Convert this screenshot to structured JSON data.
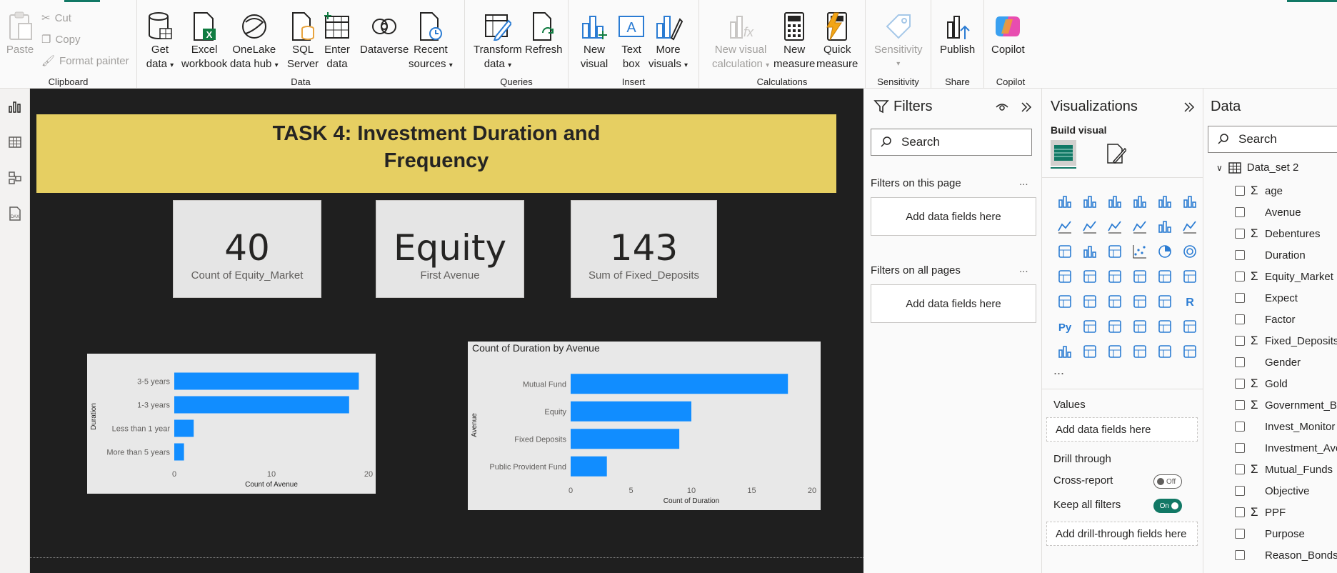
{
  "ribbon": {
    "clipboard": {
      "label": "Clipboard",
      "paste": "Paste",
      "cut": "Cut",
      "copy": "Copy",
      "format_painter": "Format painter"
    },
    "data": {
      "label": "Data",
      "get_data": [
        "Get",
        "data"
      ],
      "excel": [
        "Excel",
        "workbook"
      ],
      "onelake": [
        "OneLake",
        "data hub"
      ],
      "sql": [
        "SQL",
        "Server"
      ],
      "enter": [
        "Enter",
        "data"
      ],
      "dataverse": [
        "Dataverse"
      ],
      "recent": [
        "Recent",
        "sources"
      ]
    },
    "queries": {
      "label": "Queries",
      "transform": [
        "Transform",
        "data"
      ],
      "refresh": [
        "Refresh"
      ]
    },
    "insert": {
      "label": "Insert",
      "new_visual": [
        "New",
        "visual"
      ],
      "text_box": [
        "Text",
        "box"
      ],
      "more_visuals": [
        "More",
        "visuals"
      ]
    },
    "calculations": {
      "label": "Calculations",
      "new_visual_calc": [
        "New visual",
        "calculation"
      ],
      "new_measure": [
        "New",
        "measure"
      ],
      "quick_measure": [
        "Quick",
        "measure"
      ]
    },
    "sensitivity": {
      "label": "Sensitivity",
      "btn": [
        "Sensitivity"
      ]
    },
    "share": {
      "label": "Share",
      "publish": [
        "Publish"
      ]
    },
    "copilot": {
      "label": "Copilot",
      "btn": [
        "Copilot"
      ]
    }
  },
  "report": {
    "title_line1": "TASK 4: Investment Duration and",
    "title_line2": "Frequency",
    "cards": [
      {
        "value": "40",
        "label": "Count of Equity_Market"
      },
      {
        "value": "Equity",
        "label": "First Avenue"
      },
      {
        "value": "143",
        "label": "Sum of Fixed_Deposits"
      }
    ]
  },
  "chart_data": [
    {
      "type": "bar",
      "orientation": "horizontal",
      "title": "",
      "xlabel": "Count of Avenue",
      "ylabel": "Duration",
      "categories": [
        "3-5 years",
        "1-3 years",
        "Less than 1 year",
        "More than 5 years"
      ],
      "values": [
        19,
        18,
        2,
        1
      ],
      "xlim": [
        0,
        20
      ],
      "xticks": [
        "0",
        "10",
        "20"
      ],
      "color": "#118dff"
    },
    {
      "type": "bar",
      "orientation": "horizontal",
      "title": "Count of Duration by Avenue",
      "xlabel": "Count of Duration",
      "ylabel": "Avenue",
      "categories": [
        "Mutual Fund",
        "Equity",
        "Fixed Deposits",
        "Public Provident Fund"
      ],
      "values": [
        18,
        10,
        9,
        3
      ],
      "xlim": [
        0,
        20
      ],
      "xticks": [
        "0",
        "5",
        "10",
        "15",
        "20"
      ],
      "color": "#118dff"
    }
  ],
  "filters": {
    "title": "Filters",
    "search_placeholder": "Search",
    "on_page": "Filters on this page",
    "on_all": "Filters on all pages",
    "add_fields": "Add data fields here",
    "more": "..."
  },
  "viz": {
    "title": "Visualizations",
    "build": "Build visual",
    "values": "Values",
    "add_fields": "Add data fields here",
    "drill": "Drill through",
    "cross_report": "Cross-report",
    "cross_state": "Off",
    "keep_filters": "Keep all filters",
    "keep_state": "On",
    "add_drill": "Add drill-through fields here",
    "more": "..."
  },
  "data_pane": {
    "title": "Data",
    "search_placeholder": "Search",
    "table": "Data_set 2",
    "fields": [
      {
        "name": "age",
        "sigma": true
      },
      {
        "name": "Avenue",
        "sigma": false
      },
      {
        "name": "Debentures",
        "sigma": true
      },
      {
        "name": "Duration",
        "sigma": false
      },
      {
        "name": "Equity_Market",
        "sigma": true
      },
      {
        "name": "Expect",
        "sigma": false
      },
      {
        "name": "Factor",
        "sigma": false
      },
      {
        "name": "Fixed_Deposits",
        "sigma": true
      },
      {
        "name": "Gender",
        "sigma": false
      },
      {
        "name": "Gold",
        "sigma": true
      },
      {
        "name": "Government_Bonds",
        "sigma": true
      },
      {
        "name": "Invest_Monitor",
        "sigma": false
      },
      {
        "name": "Investment_Avenues",
        "sigma": false
      },
      {
        "name": "Mutual_Funds",
        "sigma": true
      },
      {
        "name": "Objective",
        "sigma": false
      },
      {
        "name": "PPF",
        "sigma": true
      },
      {
        "name": "Purpose",
        "sigma": false
      },
      {
        "name": "Reason_Bonds",
        "sigma": false
      }
    ]
  }
}
